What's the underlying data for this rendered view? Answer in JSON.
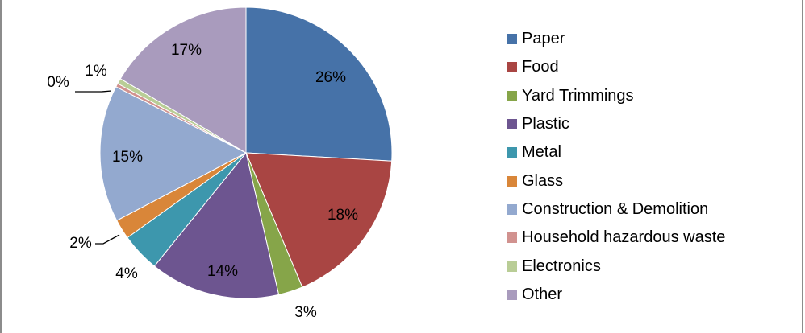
{
  "chart_data": {
    "type": "pie",
    "title": "",
    "legend_position": "right",
    "start_angle": "12 o'clock",
    "direction": "clockwise",
    "slices": [
      {
        "name": "Paper",
        "value": 25.9,
        "label": "26%",
        "color": "#4672a8"
      },
      {
        "name": "Food",
        "value": 17.8,
        "label": "18%",
        "color": "#a94543"
      },
      {
        "name": "Yard Trimmings",
        "value": 2.7,
        "label": "3%",
        "color": "#86a549"
      },
      {
        "name": "Plastic",
        "value": 14.4,
        "label": "14%",
        "color": "#6d5590"
      },
      {
        "name": "Metal",
        "value": 4.3,
        "label": "4%",
        "color": "#3d97ad"
      },
      {
        "name": "Glass",
        "value": 2.2,
        "label": "2%",
        "color": "#d98639"
      },
      {
        "name": "Construction & Demolition",
        "value": 15.2,
        "label": "15%",
        "color": "#93a9cf"
      },
      {
        "name": "Household hazardous waste",
        "value": 0.4,
        "label": "0%",
        "color": "#d1928f"
      },
      {
        "name": "Electronics",
        "value": 0.6,
        "label": "1%",
        "color": "#b9cd96"
      },
      {
        "name": "Other",
        "value": 16.5,
        "label": "17%",
        "color": "#a99bbd"
      }
    ]
  }
}
